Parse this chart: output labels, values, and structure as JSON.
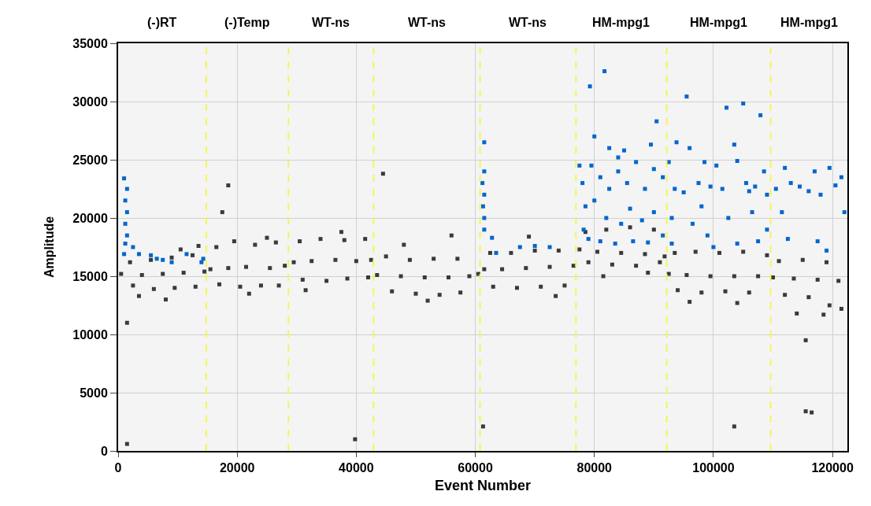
{
  "chart_data": {
    "type": "scatter",
    "xlabel": "Event Number",
    "ylabel": "Amplitude",
    "xlim": [
      0,
      122500
    ],
    "ylim": [
      0,
      35000
    ],
    "xticks": [
      0,
      20000,
      40000,
      60000,
      80000,
      100000,
      120000
    ],
    "yticks": [
      0,
      5000,
      10000,
      15000,
      20000,
      25000,
      30000,
      35000
    ],
    "grid": true,
    "marker": "square",
    "annotations": [
      "(-)RT",
      "(-)Temp",
      "WT-ns",
      "WT-ns",
      "WT-ns",
      "HM-mpg1",
      "HM-mpg1",
      "HM-mpg1"
    ],
    "ref_lines": [
      {
        "axis": "x",
        "value": 14800,
        "color": "#f5f55a",
        "line_style": "dashed"
      },
      {
        "axis": "x",
        "value": 28600,
        "color": "#f5f55a",
        "line_style": "dashed"
      },
      {
        "axis": "x",
        "value": 42900,
        "color": "#f5f55a",
        "line_style": "dashed"
      },
      {
        "axis": "x",
        "value": 60800,
        "color": "#f5f55a",
        "line_style": "dashed"
      },
      {
        "axis": "x",
        "value": 76900,
        "color": "#f5f55a",
        "line_style": "dashed"
      },
      {
        "axis": "x",
        "value": 92150,
        "color": "#f5f55a",
        "line_style": "dashed"
      },
      {
        "axis": "x",
        "value": 109600,
        "color": "#f5f55a",
        "line_style": "dashed"
      }
    ],
    "series": [
      {
        "color": "#3a3a3a",
        "x": [
          500,
          2000,
          2500,
          4000,
          5500,
          6000,
          7500,
          9000,
          9500,
          11000,
          12500,
          13000,
          14500,
          1500,
          1500,
          3500,
          8000,
          10500,
          13500,
          15500,
          16500,
          17000,
          18500,
          18500,
          17500,
          19500,
          20500,
          21500,
          23000,
          24000,
          25500,
          26500,
          27000,
          28000,
          22000,
          25000,
          29500,
          30500,
          31000,
          32500,
          34000,
          35000,
          36500,
          38000,
          38500,
          39800,
          40000,
          41500,
          42000,
          42500,
          31500,
          37500,
          43500,
          44500,
          45000,
          46000,
          47500,
          49000,
          50000,
          51500,
          53000,
          54000,
          55500,
          57000,
          57500,
          59000,
          60500,
          48000,
          56000,
          52000,
          61300,
          61500,
          62500,
          63000,
          64500,
          66000,
          67000,
          68500,
          70000,
          71000,
          72500,
          74000,
          75000,
          76500,
          69000,
          73500,
          77500,
          78500,
          79000,
          80500,
          82000,
          83000,
          84500,
          86000,
          87000,
          88500,
          90000,
          91000,
          91800,
          81500,
          89000,
          92500,
          93500,
          94000,
          95500,
          97000,
          98000,
          99500,
          101000,
          102000,
          103500,
          103500,
          105000,
          106000,
          107500,
          109000,
          96000,
          104000,
          110000,
          111000,
          112000,
          113500,
          115000,
          115500,
          115500,
          116500,
          116000,
          117500,
          119000,
          119500,
          121000,
          121500,
          114000,
          118500
        ],
        "values": [
          15200,
          16200,
          14200,
          15100,
          16400,
          13900,
          15200,
          16600,
          14000,
          15300,
          16800,
          14100,
          15400,
          11000,
          600,
          13300,
          13000,
          17300,
          17600,
          15600,
          17500,
          14300,
          15700,
          22800,
          20500,
          18000,
          14100,
          15800,
          17700,
          14200,
          15700,
          17900,
          14200,
          15900,
          13500,
          18300,
          16200,
          18000,
          14700,
          16300,
          18200,
          14600,
          16400,
          18100,
          14800,
          1000,
          16300,
          18200,
          14900,
          16400,
          13800,
          18800,
          15100,
          23800,
          16700,
          13700,
          15000,
          16400,
          13500,
          14900,
          16500,
          13400,
          14900,
          16500,
          13600,
          15000,
          15200,
          17700,
          18500,
          12900,
          2100,
          15600,
          17000,
          14100,
          15600,
          17000,
          14000,
          15700,
          17200,
          14100,
          15800,
          17200,
          14200,
          15900,
          18400,
          13300,
          17300,
          18800,
          16200,
          17100,
          19000,
          16000,
          17000,
          19200,
          15900,
          16900,
          19000,
          16200,
          16700,
          15000,
          15300,
          15200,
          17000,
          13800,
          15100,
          17100,
          13600,
          15000,
          17000,
          13700,
          2100,
          15000,
          17100,
          13600,
          15000,
          16800,
          12800,
          12700,
          14900,
          16300,
          13400,
          14800,
          16400,
          9500,
          3400,
          3300,
          13200,
          14700,
          16200,
          12500,
          14600,
          12200,
          11800,
          11700
        ]
      },
      {
        "color": "#0066cc",
        "x": [
          1000,
          1500,
          1200,
          1500,
          1200,
          1500,
          1200,
          2500,
          3500,
          5500,
          6500,
          7500,
          9000,
          11500,
          14000,
          14300,
          1000,
          61500,
          61500,
          61200,
          61500,
          61300,
          61500,
          61500,
          62800,
          63500,
          67500,
          70000,
          72500,
          77500,
          78000,
          78500,
          78200,
          79250,
          81700,
          80000,
          82500,
          84000,
          79500,
          81000,
          82500,
          84000,
          85500,
          87000,
          88500,
          90000,
          91500,
          90450,
          80000,
          82000,
          84500,
          86000,
          88000,
          90000,
          79000,
          81000,
          83500,
          86500,
          89000,
          91500,
          85000,
          89500,
          92500,
          93500,
          93000,
          93000,
          95500,
          93800,
          96000,
          97500,
          98000,
          99000,
          100500,
          101500,
          102200,
          105000,
          107900,
          102500,
          104000,
          103500,
          105500,
          106500,
          107500,
          108500,
          109000,
          109000,
          96500,
          100000,
          98500,
          104000,
          95000,
          106000,
          99500,
          107000,
          110500,
          111500,
          112000,
          113000,
          114500,
          116000,
          117000,
          118000,
          119500,
          120500,
          121500,
          122000,
          117500,
          112500,
          119000
        ],
        "values": [
          23400,
          22500,
          21500,
          20500,
          19500,
          18500,
          17800,
          17500,
          16900,
          16800,
          16500,
          16400,
          16200,
          16900,
          16200,
          16500,
          16900,
          26500,
          24000,
          23000,
          22000,
          21000,
          20000,
          19000,
          18300,
          17000,
          17500,
          17600,
          17500,
          24500,
          23000,
          21000,
          19000,
          31300,
          32600,
          27000,
          26000,
          25200,
          24500,
          23500,
          22500,
          24000,
          23000,
          24800,
          22500,
          24200,
          23500,
          28300,
          21500,
          20000,
          19500,
          20800,
          19800,
          20500,
          18200,
          18000,
          17800,
          18000,
          17900,
          18500,
          25800,
          26300,
          24800,
          22500,
          20000,
          17800,
          30430,
          26500,
          26000,
          23000,
          21000,
          18500,
          24500,
          22500,
          29470,
          29830,
          28820,
          20000,
          17800,
          26300,
          23000,
          20500,
          18000,
          24000,
          22000,
          19000,
          19500,
          17500,
          24800,
          24900,
          22200,
          22300,
          22700,
          22700,
          22500,
          20500,
          24300,
          23000,
          22700,
          22300,
          24000,
          22000,
          24300,
          22800,
          23500,
          20500,
          18000,
          18200,
          17200
        ]
      }
    ]
  }
}
